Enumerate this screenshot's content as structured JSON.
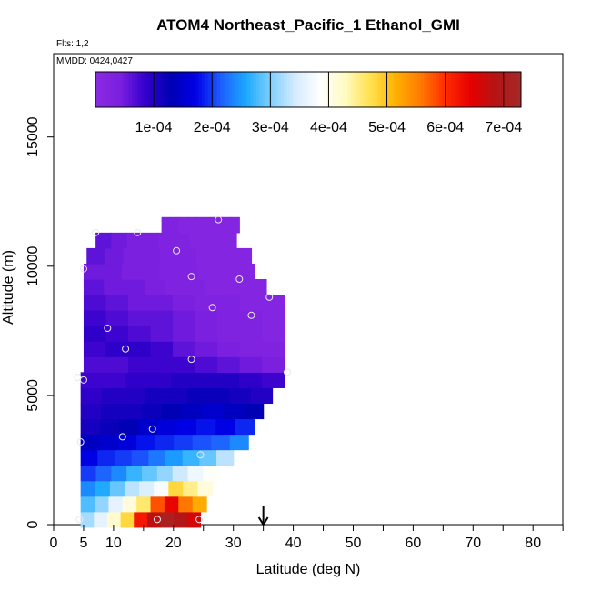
{
  "chart_data": {
    "type": "heatmap",
    "title": "ATOM4 Northeast_Pacific_1 Ethanol_GMI",
    "flights_label": "Flts: 1,2",
    "dates_label": "MMDD: 0424,0427",
    "xlabel": "Latitude (deg N)",
    "ylabel": "Altitude (m)",
    "xlim": [
      0,
      85
    ],
    "ylim": [
      0,
      18000
    ],
    "x_ticks": [
      0,
      5,
      10,
      20,
      30,
      40,
      50,
      60,
      70,
      80
    ],
    "x_tick_labels": [
      "0",
      "5",
      "10",
      "20",
      "30",
      "40",
      "50",
      "60",
      "70",
      "80"
    ],
    "y_ticks": [
      0,
      5000,
      10000,
      15000
    ],
    "y_tick_labels": [
      "0",
      "5000",
      "10000",
      "15000"
    ],
    "colorbar": {
      "range": [
        0,
        0.00073
      ],
      "ticks": [
        0.0001,
        0.0002,
        0.0003,
        0.0004,
        0.0005,
        0.0006,
        0.0007
      ],
      "tick_labels": [
        "1e-04",
        "2e-04",
        "3e-04",
        "4e-04",
        "5e-04",
        "6e-04",
        "7e-04"
      ],
      "colors": [
        "#8a2be2",
        "#7b1fe0",
        "#3300cc",
        "#0000b4",
        "#0000e6",
        "#1e5cff",
        "#1aa8ff",
        "#7fd0ff",
        "#d6ecff",
        "#ffffff",
        "#fffac0",
        "#ffe14d",
        "#ffb000",
        "#ff7a00",
        "#ff2a00",
        "#e60000",
        "#b41414",
        "#a52a2a"
      ]
    },
    "rows": [
      {
        "y": 200,
        "x": [
          4.5,
          24.5
        ],
        "values": [
          0.00032,
          0.00036,
          0.00042,
          0.00048,
          0.00062,
          0.00068,
          0.00071,
          0.00069,
          0.00066
        ]
      },
      {
        "y": 800,
        "x": [
          4.5,
          25.5
        ],
        "values": [
          0.00028,
          0.00031,
          0.00036,
          0.00041,
          0.00046,
          0.00058,
          0.00064,
          0.00056,
          0.00052
        ]
      },
      {
        "y": 1400,
        "x": [
          4.5,
          26.5
        ],
        "values": [
          0.00024,
          0.00026,
          0.00029,
          0.00033,
          0.00035,
          0.00038,
          0.00048,
          0.00045,
          0.00041
        ]
      },
      {
        "y": 2000,
        "x": [
          4.5,
          27.5
        ],
        "values": [
          0.0002,
          0.00022,
          0.00024,
          0.00027,
          0.00029,
          0.00031,
          0.00034,
          0.00037,
          0.00039
        ]
      },
      {
        "y": 2600,
        "x": [
          4.5,
          30
        ],
        "values": [
          0.00017,
          0.00019,
          0.0002,
          0.00021,
          0.00023,
          0.00025,
          0.00027,
          0.00029,
          0.00033
        ]
      },
      {
        "y": 3200,
        "x": [
          4.5,
          32.5
        ],
        "values": [
          0.00014,
          0.00015,
          0.00016,
          0.00018,
          0.00019,
          0.0002,
          0.00021,
          0.00022,
          0.00024
        ]
      },
      {
        "y": 3800,
        "x": [
          4.5,
          33.5
        ],
        "values": [
          0.00011,
          0.00012,
          0.00013,
          0.00015,
          0.00016,
          0.00017,
          0.00018,
          0.00017,
          0.00019
        ]
      },
      {
        "y": 4400,
        "x": [
          4.5,
          35
        ],
        "values": [
          0.0001,
          0.00011,
          0.00011,
          0.00012,
          0.00013,
          0.00014,
          0.00015,
          0.00014,
          0.00013
        ]
      },
      {
        "y": 5000,
        "x": [
          4.5,
          36.5
        ],
        "values": [
          9e-05,
          0.0001,
          0.0001,
          0.00011,
          0.00011,
          0.00012,
          0.00012,
          0.00011,
          0.0001
        ]
      },
      {
        "y": 5600,
        "x": [
          4.5,
          38.5
        ],
        "values": [
          8e-05,
          8e-05,
          9e-05,
          9e-05,
          0.0001,
          0.0001,
          0.0001,
          9e-05,
          8e-05
        ]
      },
      {
        "y": 6200,
        "x": [
          5,
          38.5
        ],
        "values": [
          7e-05,
          7e-05,
          8e-05,
          8e-05,
          8e-05,
          7e-05,
          6e-05,
          5e-05,
          4e-05
        ]
      },
      {
        "y": 6800,
        "x": [
          5,
          38.5
        ],
        "values": [
          8e-05,
          9e-05,
          9e-05,
          8e-05,
          6e-05,
          5e-05,
          4e-05,
          3e-05,
          3e-05
        ]
      },
      {
        "y": 7400,
        "x": [
          5,
          38.5
        ],
        "values": [
          9e-05,
          8e-05,
          7e-05,
          6e-05,
          5e-05,
          4e-05,
          3e-05,
          3e-05,
          2e-05
        ]
      },
      {
        "y": 8000,
        "x": [
          5,
          38.5
        ],
        "values": [
          8e-05,
          7e-05,
          6e-05,
          6e-05,
          5e-05,
          4e-05,
          3e-05,
          3e-05,
          2e-05
        ]
      },
      {
        "y": 8600,
        "x": [
          5,
          38.5
        ],
        "values": [
          7e-05,
          6e-05,
          5e-05,
          5e-05,
          4e-05,
          3e-05,
          3e-05,
          2e-05,
          2e-05
        ]
      },
      {
        "y": 9200,
        "x": [
          5,
          35.5
        ],
        "values": [
          6e-05,
          5e-05,
          5e-05,
          4e-05,
          3e-05,
          3e-05,
          2e-05,
          2e-05,
          2e-05
        ]
      },
      {
        "y": 9800,
        "x": [
          5,
          33.5
        ],
        "values": [
          5e-05,
          5e-05,
          4e-05,
          4e-05,
          3e-05,
          3e-05,
          2e-05,
          2e-05,
          2e-05
        ]
      },
      {
        "y": 10400,
        "x": [
          5.5,
          33
        ],
        "values": [
          6e-05,
          5e-05,
          4e-05,
          4e-05,
          3e-05,
          3e-05,
          2e-05,
          2e-05,
          2e-05
        ]
      },
      {
        "y": 11000,
        "x": [
          7,
          30.5
        ],
        "values": [
          6e-05,
          5e-05,
          4e-05,
          4e-05,
          3e-05,
          3e-05,
          2e-05,
          2e-05,
          2e-05
        ]
      },
      {
        "y": 11600,
        "x": [
          18,
          31
        ],
        "values": [
          3e-05,
          3e-05,
          2e-05,
          2e-05,
          2e-05,
          2e-05,
          2e-05,
          2e-05,
          2e-05
        ]
      }
    ],
    "samples": [
      {
        "x": 4.3,
        "y": 200
      },
      {
        "x": 17.3,
        "y": 200
      },
      {
        "x": 24.3,
        "y": 200
      },
      {
        "x": 4.5,
        "y": 3200
      },
      {
        "x": 11.5,
        "y": 3400
      },
      {
        "x": 16.5,
        "y": 3700
      },
      {
        "x": 24.5,
        "y": 2700
      },
      {
        "x": 4,
        "y": 5700
      },
      {
        "x": 5,
        "y": 5600
      },
      {
        "x": 39,
        "y": 5900
      },
      {
        "x": 12,
        "y": 6800
      },
      {
        "x": 23,
        "y": 6400
      },
      {
        "x": 9,
        "y": 7600
      },
      {
        "x": 26.5,
        "y": 8400
      },
      {
        "x": 33,
        "y": 8100
      },
      {
        "x": 36,
        "y": 8800
      },
      {
        "x": 5,
        "y": 9900
      },
      {
        "x": 23,
        "y": 9600
      },
      {
        "x": 31,
        "y": 9500
      },
      {
        "x": 20.5,
        "y": 10600
      },
      {
        "x": 7,
        "y": 11300
      },
      {
        "x": 14,
        "y": 11300
      },
      {
        "x": 27.5,
        "y": 11800
      }
    ],
    "marker": {
      "x": 35,
      "label": "↓"
    },
    "grid": false,
    "legend": "colorbar-top"
  }
}
